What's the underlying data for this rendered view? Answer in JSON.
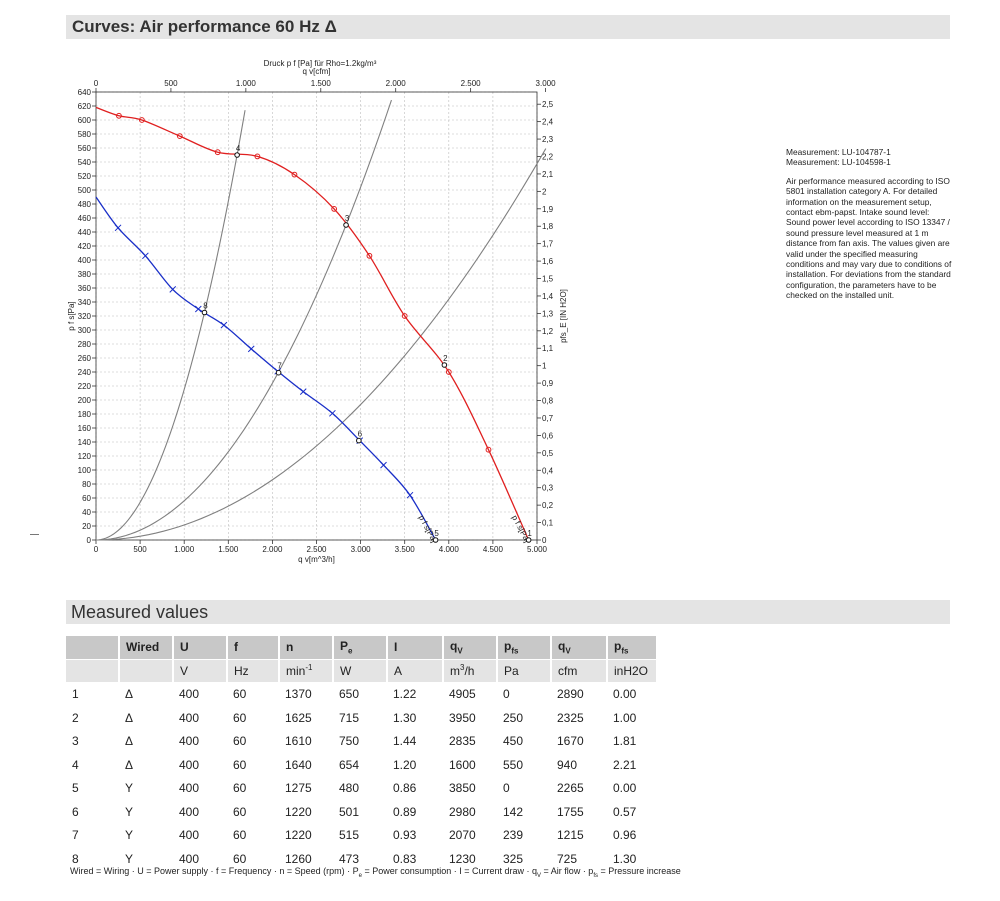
{
  "page": {
    "curves_title": "Curves: Air performance 60 Hz Δ",
    "measured_title": "Measured values"
  },
  "notes": {
    "measurement1": "Measurement: LU-104787-1",
    "measurement2": "Measurement: LU-104598-1",
    "description": "Air performance measured according to ISO 5801 installation category A. For detailed information on the measurement setup, contact ebm-papst. Intake sound level: Sound power level according to ISO 13347 / sound pressure level measured at 1 m distance from fan axis. The values given are valid under the specified measuring conditions and may vary due to conditions of installation. For deviations from the standard configuration, the parameters have to be checked on the installed unit."
  },
  "chart_data": {
    "type": "line",
    "title": "Druck p f [Pa] für Rho=1.2kg/m³",
    "xlabel": "q v[m^3/h]",
    "x2label": "q v[cfm]",
    "ylabel": "p f s[Pa]",
    "y2label": "pfs_E [IN H2O]",
    "xlim": [
      0,
      5000
    ],
    "ylim": [
      0,
      640
    ],
    "x2lim": [
      0,
      2943
    ],
    "y2lim": [
      0,
      2.57
    ],
    "x_ticks": [
      0,
      500,
      1000,
      1500,
      2000,
      2500,
      3000,
      3500,
      4000,
      4500,
      5000
    ],
    "x_tick_labels": [
      "0",
      "500",
      "1.000",
      "1.500",
      "2.000",
      "2.500",
      "3.000",
      "3.500",
      "4.000",
      "4.500",
      "5.000"
    ],
    "x2_ticks": [
      0,
      500,
      1000,
      1500,
      2000,
      2500,
      3000
    ],
    "x2_tick_labels": [
      "0",
      "500",
      "1.000",
      "1.500",
      "2.000",
      "2.500",
      "3.000"
    ],
    "y_ticks": [
      0,
      20,
      40,
      60,
      80,
      100,
      120,
      140,
      160,
      180,
      200,
      220,
      240,
      260,
      280,
      300,
      320,
      340,
      360,
      380,
      400,
      420,
      440,
      460,
      480,
      500,
      520,
      540,
      560,
      580,
      600,
      620,
      640
    ],
    "y2_ticks": [
      0,
      0.1,
      0.2,
      0.3,
      0.4,
      0.5,
      0.6,
      0.7,
      0.8,
      0.9,
      1,
      1.1,
      1.2,
      1.3,
      1.4,
      1.5,
      1.6,
      1.7,
      1.8,
      1.9,
      2,
      2.1,
      2.2,
      2.3,
      2.4,
      2.5
    ],
    "y2_tick_labels": [
      "0",
      "0,1",
      "0,2",
      "0,3",
      "0,4",
      "0,5",
      "0,6",
      "0,7",
      "0,8",
      "0,9",
      "1",
      "1,1",
      "1,2",
      "1,3",
      "1,4",
      "1,5",
      "1,6",
      "1,7",
      "1,8",
      "1,9",
      "2",
      "2,1",
      "2,2",
      "2,3",
      "2,4",
      "2,5"
    ],
    "grid": true,
    "series": [
      {
        "name": "p f s[Pa]",
        "color": "#e02020",
        "marker": "circle",
        "points": [
          [
            0,
            618
          ],
          [
            260,
            606
          ],
          [
            520,
            600
          ],
          [
            950,
            577
          ],
          [
            1380,
            554
          ],
          [
            1830,
            548
          ],
          [
            2250,
            522
          ],
          [
            2700,
            473
          ],
          [
            3100,
            406
          ],
          [
            3500,
            320
          ],
          [
            4000,
            240
          ],
          [
            4450,
            129
          ],
          [
            4905,
            0
          ]
        ]
      },
      {
        "name": "p f s[Pa]",
        "color": "#1a2fc8",
        "marker": "cross",
        "points": [
          [
            0,
            490
          ],
          [
            250,
            446
          ],
          [
            560,
            406
          ],
          [
            870,
            358
          ],
          [
            1160,
            330
          ],
          [
            1450,
            307
          ],
          [
            1760,
            273
          ],
          [
            2060,
            241
          ],
          [
            2350,
            212
          ],
          [
            2680,
            181
          ],
          [
            2990,
            142
          ],
          [
            3260,
            107
          ],
          [
            3560,
            64
          ],
          [
            3850,
            0
          ]
        ]
      }
    ],
    "system_curves": [
      {
        "name": "curve through 4",
        "k": 0.000215,
        "xmax": 1690,
        "color": "#808080"
      },
      {
        "name": "curve through 3",
        "k": 5.6e-05,
        "xmax": 3350,
        "color": "#808080"
      },
      {
        "name": "curve through 8",
        "k": 2.15e-05,
        "xmax": 5100,
        "color": "#808080"
      }
    ],
    "operating_points": [
      {
        "label": "1",
        "x": 4905,
        "y": 0
      },
      {
        "label": "2",
        "x": 3950,
        "y": 250
      },
      {
        "label": "3",
        "x": 2835,
        "y": 450
      },
      {
        "label": "4",
        "x": 1600,
        "y": 550
      },
      {
        "label": "5",
        "x": 3850,
        "y": 0
      },
      {
        "label": "6",
        "x": 2980,
        "y": 142
      },
      {
        "label": "7",
        "x": 2070,
        "y": 239
      },
      {
        "label": "8",
        "x": 1230,
        "y": 325
      }
    ]
  },
  "table": {
    "header": [
      "",
      "Wired",
      "U",
      "f",
      "n",
      "P",
      "I",
      "q",
      "p",
      "q",
      "p"
    ],
    "header_sub": [
      "",
      "",
      "",
      "",
      "",
      "e",
      "",
      "V",
      "fs",
      "V",
      "fs"
    ],
    "units": [
      "",
      "",
      "V",
      "Hz",
      "min",
      "W",
      "A",
      "m",
      "Pa",
      "cfm",
      "inH2O"
    ],
    "units_sup": [
      "",
      "",
      "",
      "",
      "-1",
      "",
      "",
      "3",
      "",
      "",
      ""
    ],
    "units_tail": [
      "",
      "",
      "",
      "",
      "",
      "",
      "",
      "/h",
      "",
      "",
      ""
    ],
    "rows": [
      [
        "1",
        "Δ",
        "400",
        "60",
        "1370",
        "650",
        "1.22",
        "4905",
        "0",
        "2890",
        "0.00"
      ],
      [
        "2",
        "Δ",
        "400",
        "60",
        "1625",
        "715",
        "1.30",
        "3950",
        "250",
        "2325",
        "1.00"
      ],
      [
        "3",
        "Δ",
        "400",
        "60",
        "1610",
        "750",
        "1.44",
        "2835",
        "450",
        "1670",
        "1.81"
      ],
      [
        "4",
        "Δ",
        "400",
        "60",
        "1640",
        "654",
        "1.20",
        "1600",
        "550",
        "940",
        "2.21"
      ],
      [
        "5",
        "Y",
        "400",
        "60",
        "1275",
        "480",
        "0.86",
        "3850",
        "0",
        "2265",
        "0.00"
      ],
      [
        "6",
        "Y",
        "400",
        "60",
        "1220",
        "501",
        "0.89",
        "2980",
        "142",
        "1755",
        "0.57"
      ],
      [
        "7",
        "Y",
        "400",
        "60",
        "1220",
        "515",
        "0.93",
        "2070",
        "239",
        "1215",
        "0.96"
      ],
      [
        "8",
        "Y",
        "400",
        "60",
        "1260",
        "473",
        "0.83",
        "1230",
        "325",
        "725",
        "1.30"
      ]
    ],
    "column_widths": [
      52,
      52,
      52,
      50,
      52,
      52,
      54,
      52,
      52,
      54,
      48
    ]
  },
  "legend": {
    "a": "Wired = Wiring · U = Power supply · f = Frequency · n = Speed (rpm) · P",
    "a_sub": "e",
    "b": " = Power consumption · I = Current draw · q",
    "b_sub": "V",
    "c": " = Air flow · p",
    "c_sub": "fs",
    "d": " = Pressure increase"
  }
}
